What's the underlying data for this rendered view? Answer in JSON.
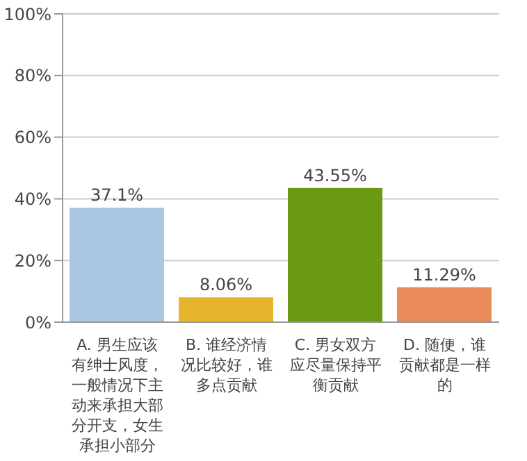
{
  "chart_data": {
    "type": "bar",
    "categories": [
      "A. 男生应该有绅士风度，一般情况下主动来承担大部分开支，女生承担小部分",
      "B. 谁经济情况比较好，谁多点贡献",
      "C. 男女双方应尽量保持平衡贡献",
      "D. 随便，谁贡献都是一样的"
    ],
    "values": [
      37.1,
      8.06,
      43.55,
      11.29
    ],
    "colors": [
      "#a9c6e3",
      "#e6b52e",
      "#6b9a12",
      "#e98a5a"
    ],
    "ylim": [
      0,
      100
    ],
    "yticks": [
      {
        "value": 0,
        "label": "0%"
      },
      {
        "value": 20,
        "label": "20%"
      },
      {
        "value": 40,
        "label": "40%"
      },
      {
        "value": 60,
        "label": "60%"
      },
      {
        "value": 80,
        "label": "80%"
      },
      {
        "value": 100,
        "label": "100%"
      }
    ],
    "value_labels": [
      "37.1%",
      "8.06%",
      "43.55%",
      "11.29%"
    ],
    "grid": "y"
  }
}
